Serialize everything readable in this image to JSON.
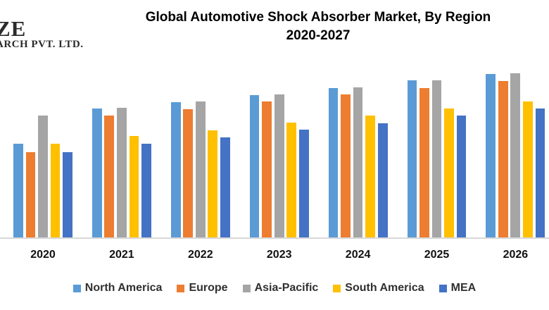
{
  "logo": {
    "line1": "ZE",
    "line2": "ARCH PVT. LTD."
  },
  "title": {
    "line1": "Global Automotive Shock Absorber Market, By Region",
    "line2": "2020-2027"
  },
  "chart_data": {
    "type": "bar",
    "title": "Global Automotive Shock Absorber Market, By Region 2020-2027",
    "categories": [
      "2020",
      "2021",
      "2022",
      "2023",
      "2024",
      "2025",
      "2026"
    ],
    "series": [
      {
        "name": "North America",
        "color": "#5B9BD5",
        "values": [
          133,
          183,
          192,
          202,
          212,
          223,
          232
        ]
      },
      {
        "name": "Europe",
        "color": "#ED7D31",
        "values": [
          121,
          173,
          182,
          193,
          203,
          212,
          222
        ]
      },
      {
        "name": "Asia-Pacific",
        "color": "#A5A5A5",
        "values": [
          173,
          184,
          193,
          203,
          213,
          223,
          233
        ]
      },
      {
        "name": "South America",
        "color": "#FFC000",
        "values": [
          133,
          144,
          152,
          163,
          173,
          183,
          193
        ]
      },
      {
        "name": "MEA",
        "color": "#4472C4",
        "values": [
          121,
          133,
          142,
          153,
          162,
          173,
          183
        ]
      }
    ],
    "xlabel": "",
    "ylabel": "",
    "value_units": "relative height (no value axis shown in chart)",
    "ylim": [
      0,
      250
    ],
    "grid": false,
    "legend_position": "bottom",
    "axis_line_color": "#D9D9D9"
  }
}
